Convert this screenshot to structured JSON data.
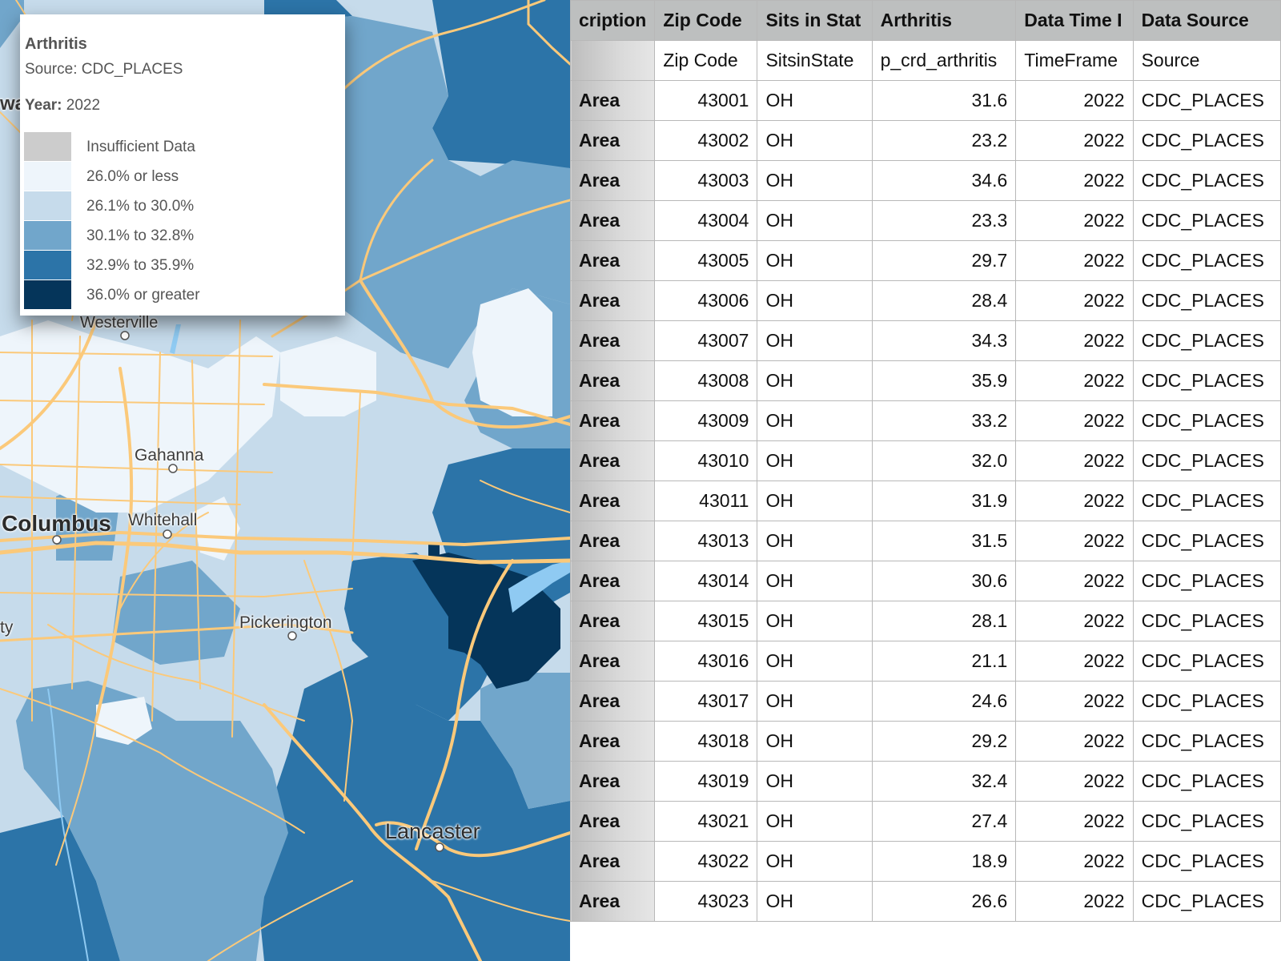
{
  "map": {
    "legend": {
      "title": "Arthritis",
      "source": "Source: CDC_PLACES",
      "year_label": "Year:",
      "year_value": "2022",
      "items": [
        {
          "label": "Insufficient Data",
          "color": "#cccccc"
        },
        {
          "label": "26.0% or less",
          "color": "#eef5fb"
        },
        {
          "label": "26.1% to 30.0%",
          "color": "#c6dbeb"
        },
        {
          "label": "30.1% to 32.8%",
          "color": "#71a6cb"
        },
        {
          "label": "32.9% to 35.9%",
          "color": "#2c74a8"
        },
        {
          "label": "36.0% or greater",
          "color": "#05355a"
        }
      ]
    },
    "places": {
      "westerville": "Westerville",
      "gahanna": "Gahanna",
      "columbus": "Columbus",
      "whitehall": "Whitehall",
      "pickerington": "Pickerington",
      "lancaster": "Lancaster",
      "edge_wa": "wa",
      "edge_ty": "ty"
    }
  },
  "table": {
    "headers": [
      "cription",
      "Zip Code",
      "Sits in Stat",
      "Arthritis",
      "Data Time I",
      "Data Source"
    ],
    "field_row": [
      "",
      "Zip Code",
      "SitsinState",
      "p_crd_arthritis",
      "TimeFrame",
      "Source"
    ],
    "rows": [
      [
        "Area",
        "43001",
        "OH",
        "31.6",
        "2022",
        "CDC_PLACES"
      ],
      [
        "Area",
        "43002",
        "OH",
        "23.2",
        "2022",
        "CDC_PLACES"
      ],
      [
        "Area",
        "43003",
        "OH",
        "34.6",
        "2022",
        "CDC_PLACES"
      ],
      [
        "Area",
        "43004",
        "OH",
        "23.3",
        "2022",
        "CDC_PLACES"
      ],
      [
        "Area",
        "43005",
        "OH",
        "29.7",
        "2022",
        "CDC_PLACES"
      ],
      [
        "Area",
        "43006",
        "OH",
        "28.4",
        "2022",
        "CDC_PLACES"
      ],
      [
        "Area",
        "43007",
        "OH",
        "34.3",
        "2022",
        "CDC_PLACES"
      ],
      [
        "Area",
        "43008",
        "OH",
        "35.9",
        "2022",
        "CDC_PLACES"
      ],
      [
        "Area",
        "43009",
        "OH",
        "33.2",
        "2022",
        "CDC_PLACES"
      ],
      [
        "Area",
        "43010",
        "OH",
        "32.0",
        "2022",
        "CDC_PLACES"
      ],
      [
        "Area",
        "43011",
        "OH",
        "31.9",
        "2022",
        "CDC_PLACES"
      ],
      [
        "Area",
        "43013",
        "OH",
        "31.5",
        "2022",
        "CDC_PLACES"
      ],
      [
        "Area",
        "43014",
        "OH",
        "30.6",
        "2022",
        "CDC_PLACES"
      ],
      [
        "Area",
        "43015",
        "OH",
        "28.1",
        "2022",
        "CDC_PLACES"
      ],
      [
        "Area",
        "43016",
        "OH",
        "21.1",
        "2022",
        "CDC_PLACES"
      ],
      [
        "Area",
        "43017",
        "OH",
        "24.6",
        "2022",
        "CDC_PLACES"
      ],
      [
        "Area",
        "43018",
        "OH",
        "29.2",
        "2022",
        "CDC_PLACES"
      ],
      [
        "Area",
        "43019",
        "OH",
        "32.4",
        "2022",
        "CDC_PLACES"
      ],
      [
        "Area",
        "43021",
        "OH",
        "27.4",
        "2022",
        "CDC_PLACES"
      ],
      [
        "Area",
        "43022",
        "OH",
        "18.9",
        "2022",
        "CDC_PLACES"
      ],
      [
        "Area",
        "43023",
        "OH",
        "26.6",
        "2022",
        "CDC_PLACES"
      ]
    ]
  }
}
